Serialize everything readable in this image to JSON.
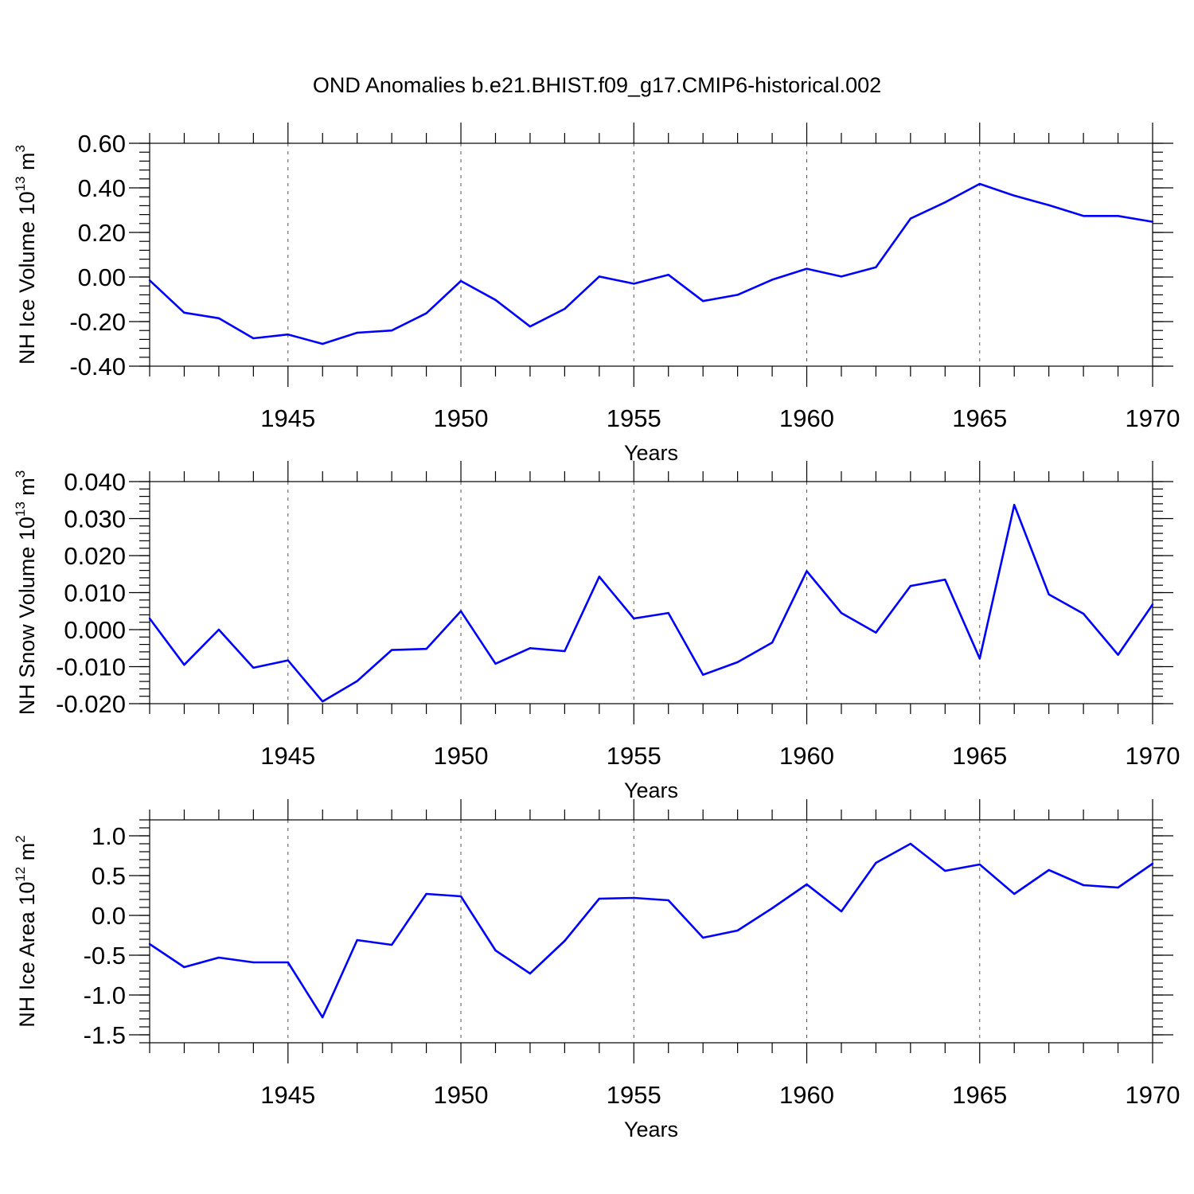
{
  "chart_data": {
    "title": "OND Anomalies b.e21.BHIST.f09_g17.CMIP6-historical.002",
    "type": "line",
    "panels": [
      {
        "type": "line",
        "ylabel": {
          "text": "NH Ice Volume 10",
          "sup": "13",
          "unit": " m",
          "unit_sup": "3"
        },
        "xlabel": "Years",
        "xlim": [
          1941,
          1970
        ],
        "ylim": [
          -0.4,
          0.6
        ],
        "yticks": [
          -0.4,
          -0.2,
          0.0,
          0.2,
          0.4,
          0.6
        ],
        "ytick_labels": [
          "-0.40",
          "-0.20",
          "0.00",
          "0.20",
          "0.40",
          "0.60"
        ],
        "yminor": 0.04,
        "xticks": [
          1945,
          1950,
          1955,
          1960,
          1965,
          1970
        ],
        "xtick_labels": [
          "1945",
          "1950",
          "1955",
          "1960",
          "1965",
          "1970"
        ],
        "grid": "vertical-dashed",
        "color": "#0000ff",
        "x": [
          1941,
          1942,
          1943,
          1944,
          1945,
          1946,
          1947,
          1948,
          1949,
          1950,
          1951,
          1952,
          1953,
          1954,
          1955,
          1956,
          1957,
          1958,
          1959,
          1960,
          1961,
          1962,
          1963,
          1964,
          1965,
          1966,
          1967,
          1968,
          1969,
          1970
        ],
        "values": [
          -0.015,
          -0.16,
          -0.185,
          -0.275,
          -0.258,
          -0.3,
          -0.25,
          -0.24,
          -0.163,
          -0.018,
          -0.103,
          -0.222,
          -0.143,
          0.002,
          -0.03,
          0.01,
          -0.108,
          -0.08,
          -0.012,
          0.037,
          0.002,
          0.044,
          0.262,
          0.335,
          0.418,
          0.365,
          0.322,
          0.274,
          0.274,
          0.248
        ]
      },
      {
        "type": "line",
        "ylabel": {
          "text": "NH Snow Volume 10",
          "sup": "13",
          "unit": " m",
          "unit_sup": "3"
        },
        "xlabel": "Years",
        "xlim": [
          1941,
          1970
        ],
        "ylim": [
          -0.02,
          0.04
        ],
        "yticks": [
          -0.02,
          -0.01,
          0.0,
          0.01,
          0.02,
          0.03,
          0.04
        ],
        "ytick_labels": [
          "-0.020",
          "-0.010",
          "0.000",
          "0.010",
          "0.020",
          "0.030",
          "0.040"
        ],
        "yminor": 0.002,
        "xticks": [
          1945,
          1950,
          1955,
          1960,
          1965,
          1970
        ],
        "xtick_labels": [
          "1945",
          "1950",
          "1955",
          "1960",
          "1965",
          "1970"
        ],
        "grid": "vertical-dashed",
        "color": "#0000ff",
        "x": [
          1941,
          1942,
          1943,
          1944,
          1945,
          1946,
          1947,
          1948,
          1949,
          1950,
          1951,
          1952,
          1953,
          1954,
          1955,
          1956,
          1957,
          1958,
          1959,
          1960,
          1961,
          1962,
          1963,
          1964,
          1965,
          1966,
          1967,
          1968,
          1969,
          1970
        ],
        "values": [
          0.003,
          -0.0095,
          0.0,
          -0.0103,
          -0.0083,
          -0.0194,
          -0.0139,
          -0.0055,
          -0.0052,
          0.005,
          -0.0092,
          -0.005,
          -0.0058,
          0.0143,
          0.003,
          0.0045,
          -0.0122,
          -0.0088,
          -0.0035,
          0.0158,
          0.0045,
          -0.0008,
          0.0118,
          0.0135,
          -0.0078,
          0.0337,
          0.0095,
          0.0043,
          -0.0068,
          0.0068
        ]
      },
      {
        "type": "line",
        "ylabel": {
          "text": "NH Ice Area 10",
          "sup": "12",
          "unit": " m",
          "unit_sup": "2"
        },
        "xlabel": "Years",
        "xlim": [
          1941,
          1970
        ],
        "ylim": [
          -1.6,
          1.2
        ],
        "yticks": [
          -1.5,
          -1.0,
          -0.5,
          0.0,
          0.5,
          1.0
        ],
        "ytick_labels": [
          "-1.5",
          "-1.0",
          "-0.5",
          "0.0",
          "0.5",
          "1.0"
        ],
        "yminor": 0.1,
        "xticks": [
          1945,
          1950,
          1955,
          1960,
          1965,
          1970
        ],
        "xtick_labels": [
          "1945",
          "1950",
          "1955",
          "1960",
          "1965",
          "1970"
        ],
        "grid": "vertical-dashed",
        "color": "#0000ff",
        "x": [
          1941,
          1942,
          1943,
          1944,
          1945,
          1946,
          1947,
          1948,
          1949,
          1950,
          1951,
          1952,
          1953,
          1954,
          1955,
          1956,
          1957,
          1958,
          1959,
          1960,
          1961,
          1962,
          1963,
          1964,
          1965,
          1966,
          1967,
          1968,
          1969,
          1970
        ],
        "values": [
          -0.36,
          -0.65,
          -0.53,
          -0.59,
          -0.59,
          -1.28,
          -0.31,
          -0.37,
          0.27,
          0.24,
          -0.44,
          -0.73,
          -0.32,
          0.21,
          0.22,
          0.19,
          -0.28,
          -0.19,
          0.09,
          0.39,
          0.05,
          0.66,
          0.9,
          0.56,
          0.64,
          0.27,
          0.57,
          0.38,
          0.35,
          0.65
        ]
      }
    ]
  }
}
